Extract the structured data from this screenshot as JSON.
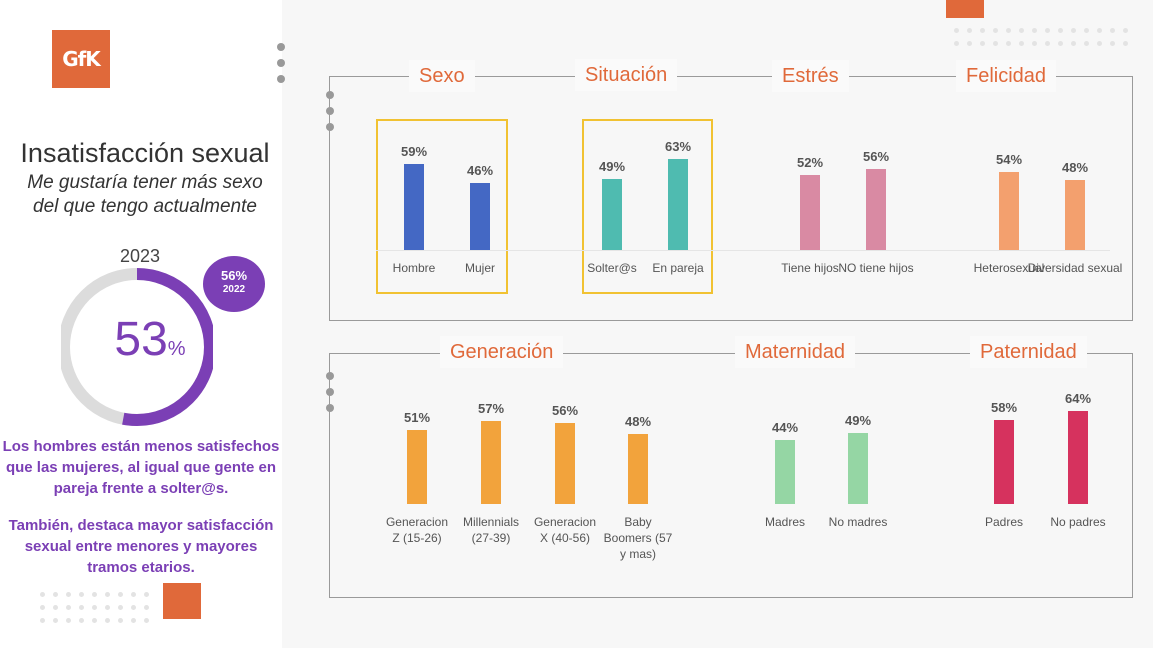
{
  "logo": {
    "text": "GfK"
  },
  "left": {
    "title": "Insatisfacción sexual",
    "subtitle_line1": "Me gustaría tener más sexo",
    "subtitle_line2": "del que tengo actualmente",
    "year": "2023",
    "badge_value": "56%",
    "badge_year": "2022",
    "main_value": "53",
    "main_unit": "%",
    "note1_line1": "Los hombres están menos satisfechos",
    "note1_line2": "que las mujeres, al igual que gente en",
    "note1_line3": "pareja frente a solter@s.",
    "note2_line1": "También, destaca mayor satisfacción",
    "note2_line2": "sexual entre menores y mayores",
    "note2_line3": "tramos etarios."
  },
  "colors": {
    "accent": "#e0693a",
    "purple": "#7b3fb5",
    "highlight": "#f1c232"
  },
  "chart_data": [
    {
      "type": "bar",
      "title": "Sexo",
      "categories": [
        "Hombre",
        "Mujer"
      ],
      "values": [
        59,
        46
      ],
      "labels": [
        "59%",
        "46%"
      ],
      "color": "#4468c4"
    },
    {
      "type": "bar",
      "title": "Situación",
      "categories": [
        "Solter@s",
        "En pareja"
      ],
      "values": [
        49,
        63
      ],
      "labels": [
        "49%",
        "63%"
      ],
      "color": "#4fbbb0"
    },
    {
      "type": "bar",
      "title": "Estrés",
      "categories": [
        "Tiene hijos",
        "NO tiene hijos"
      ],
      "values": [
        52,
        56
      ],
      "labels": [
        "52%",
        "56%"
      ],
      "color": "#d98aa3"
    },
    {
      "type": "bar",
      "title": "Felicidad",
      "categories": [
        "Heterosexual",
        "Diversidad sexual"
      ],
      "values": [
        54,
        48
      ],
      "labels": [
        "54%",
        "48%"
      ],
      "color": "#f3a06e"
    },
    {
      "type": "bar",
      "title": "Generación",
      "categories": [
        "Generacion Z (15-26)",
        "Millennials (27-39)",
        "Generacion X (40-56)",
        "Baby Boomers (57 y mas)"
      ],
      "values": [
        51,
        57,
        56,
        48
      ],
      "labels": [
        "51%",
        "57%",
        "56%",
        "48%"
      ],
      "color": "#f2a33c"
    },
    {
      "type": "bar",
      "title": "Maternidad",
      "categories": [
        "Madres",
        "No madres"
      ],
      "values": [
        44,
        49
      ],
      "labels": [
        "44%",
        "49%"
      ],
      "color": "#95d6a4"
    },
    {
      "type": "bar",
      "title": "Paternidad",
      "categories": [
        "Padres",
        "No padres"
      ],
      "values": [
        58,
        64
      ],
      "labels": [
        "58%",
        "64%"
      ],
      "color": "#d6325e"
    }
  ]
}
